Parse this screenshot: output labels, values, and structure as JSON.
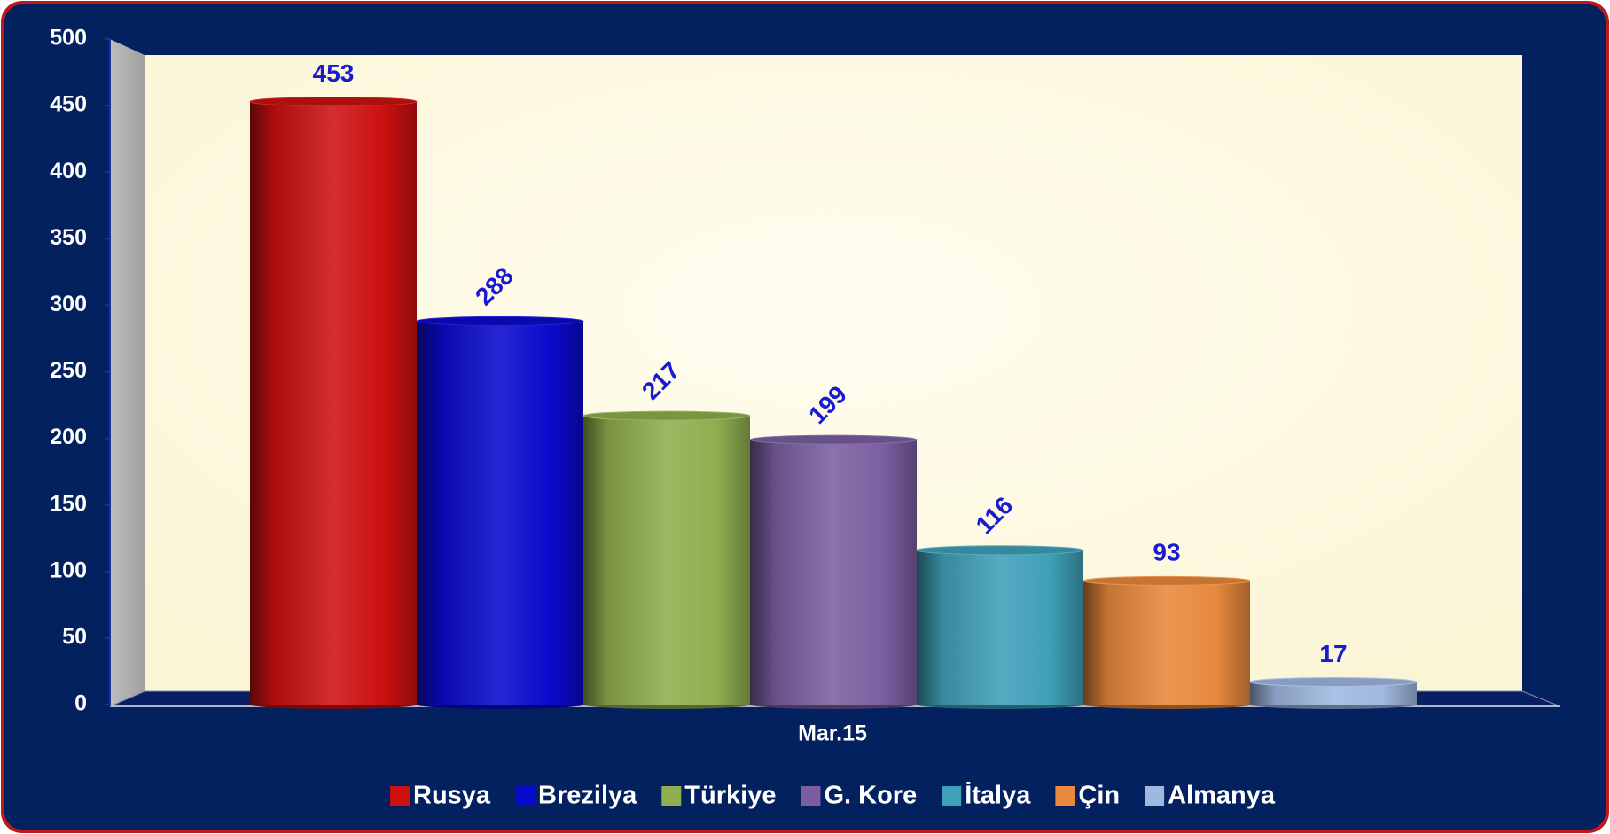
{
  "chart_data": {
    "type": "bar",
    "categories": [
      "Mar.15"
    ],
    "series": [
      {
        "name": "Rusya",
        "color": "#cc1111",
        "values": [
          453
        ]
      },
      {
        "name": "Brezilya",
        "color": "#0a0acc",
        "values": [
          288
        ]
      },
      {
        "name": "Türkiye",
        "color": "#8fae4e",
        "values": [
          217
        ]
      },
      {
        "name": "G. Kore",
        "color": "#7a5fa0",
        "values": [
          199
        ]
      },
      {
        "name": "İtalya",
        "color": "#3fa0b8",
        "values": [
          116
        ]
      },
      {
        "name": "Çin",
        "color": "#e8883c",
        "values": [
          93
        ]
      },
      {
        "name": "Almanya",
        "color": "#9fb8e0",
        "values": [
          17
        ]
      }
    ],
    "ylim": [
      0,
      500
    ],
    "yticks": [
      0,
      50,
      100,
      150,
      200,
      250,
      300,
      350,
      400,
      450,
      500
    ],
    "legend": "bottom"
  }
}
